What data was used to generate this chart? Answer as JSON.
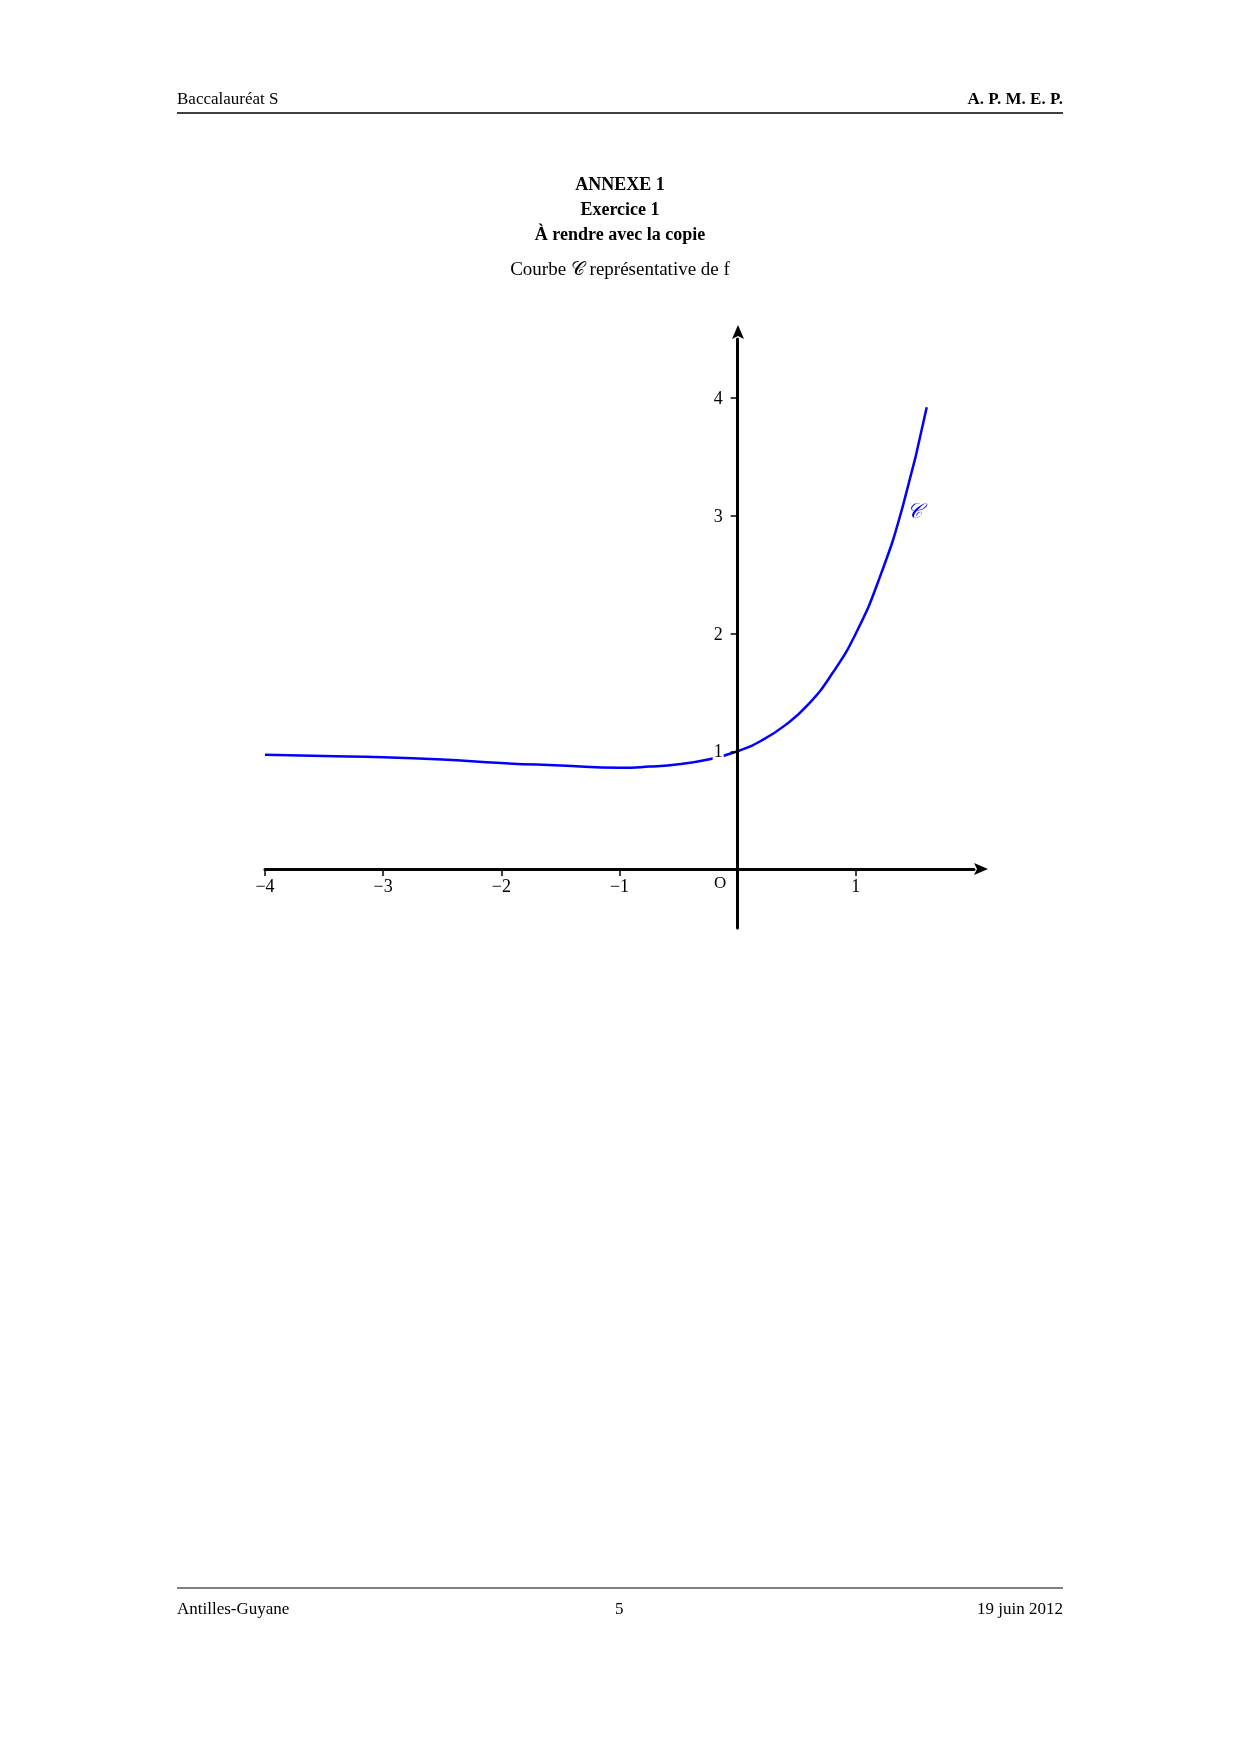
{
  "chart_data": {
    "type": "line",
    "title": "ANNEXE 1\nExercice 1\nÀ rendre avec la copie",
    "subtitle": "Courbe 𝒞 représentative de f",
    "annotations": [
      "Baccalauréat S",
      "A. P. M. E. P.",
      "Antilles-Guyane",
      "5",
      "19 juin 2012",
      "𝒞",
      "O"
    ],
    "x": [
      -4,
      -3.5,
      -3,
      -2.5,
      -2,
      -1.5,
      -1,
      -0.75,
      -0.5,
      -0.25,
      0,
      0.2,
      0.4,
      0.6,
      0.8,
      1,
      1.2,
      1.4,
      1.6
    ],
    "series": [
      {
        "color": "#0000ff",
        "values": [
          0.97,
          0.96,
          0.95,
          0.93,
          0.9,
          0.88,
          0.86,
          0.87,
          0.89,
          0.93,
          1,
          1.09,
          1.22,
          1.4,
          1.66,
          2,
          2.47,
          3.09,
          3.92
        ]
      }
    ],
    "xlim": [
      -4,
      2
    ],
    "ylim": [
      -0.5,
      4.5
    ],
    "xticks": [
      {
        "value": -4,
        "label": "−4"
      },
      {
        "value": -3,
        "label": "−3"
      },
      {
        "value": -2,
        "label": "−2"
      },
      {
        "value": -1,
        "label": "−1"
      },
      1
    ],
    "yticks": [
      1,
      2,
      3,
      4
    ],
    "grid": false,
    "marker": "none",
    "line_style": "solid"
  }
}
